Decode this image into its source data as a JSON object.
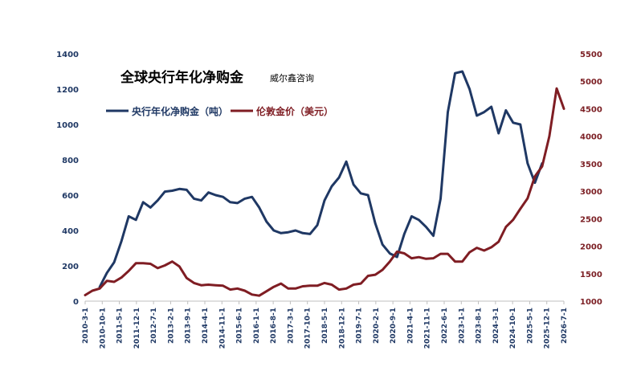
{
  "chart_data": {
    "type": "line",
    "title": "全球央行年化净购金",
    "subtitle": "威尔鑫咨询",
    "xlabel": "",
    "ylabel": "",
    "y_left_lim": [
      0,
      1400
    ],
    "y_left_ticks": [
      "0",
      "200",
      "400",
      "600",
      "800",
      "1000",
      "1200",
      "1400"
    ],
    "y_right_lim": [
      1000,
      5500
    ],
    "y_right_ticks": [
      "1000",
      "1500",
      "2000",
      "2500",
      "3000",
      "3500",
      "4000",
      "4500",
      "5000",
      "5500"
    ],
    "x_tick_labels": [
      "2010-3-1",
      "2010-10-1",
      "2011-5-1",
      "2011-12-1",
      "2012-7-1",
      "2013-2-1",
      "2013-9-1",
      "2014-4-1",
      "2014-11-1",
      "2015-6-1",
      "2016-1-1",
      "2016-8-1",
      "2017-3-1",
      "2017-10-1",
      "2018-5-1",
      "2018-12-1",
      "2019-7-1",
      "2020-2-1",
      "2020-9-1",
      "2021-4-1",
      "2021-11-1",
      "2022-6-1",
      "2023-1-1",
      "2023-8-1",
      "2024-3-1",
      "2024-10-1",
      "2025-5-1",
      "2025-12-1",
      "2026-7-1"
    ],
    "legend_position": "top-left",
    "grid": false,
    "series": [
      {
        "name": "央行年化净购金（吨）",
        "axis": "left",
        "color": "#1f3864",
        "start_index": 2,
        "values": [
          80,
          160,
          220,
          340,
          480,
          460,
          560,
          530,
          570,
          620,
          625,
          635,
          630,
          580,
          570,
          615,
          600,
          590,
          560,
          555,
          580,
          590,
          530,
          450,
          400,
          385,
          390,
          400,
          385,
          380,
          430,
          570,
          650,
          700,
          790,
          660,
          610,
          600,
          440,
          320,
          270,
          250,
          380,
          480,
          460,
          420,
          370,
          580,
          1070,
          1290,
          1300,
          1200,
          1050,
          1070,
          1100,
          950,
          1080,
          1010,
          1000,
          780,
          670,
          780
        ]
      },
      {
        "name": "伦敦金价（美元）",
        "axis": "right",
        "color": "#7f1d23",
        "start_index": 0,
        "values": [
          1110,
          1190,
          1230,
          1370,
          1350,
          1430,
          1550,
          1690,
          1690,
          1680,
          1600,
          1650,
          1720,
          1630,
          1420,
          1330,
          1290,
          1300,
          1290,
          1280,
          1210,
          1230,
          1190,
          1120,
          1100,
          1180,
          1260,
          1320,
          1230,
          1230,
          1270,
          1280,
          1280,
          1330,
          1300,
          1210,
          1230,
          1300,
          1320,
          1460,
          1480,
          1570,
          1720,
          1900,
          1870,
          1780,
          1800,
          1770,
          1780,
          1860,
          1860,
          1720,
          1720,
          1890,
          1970,
          1920,
          1980,
          2080,
          2350,
          2480,
          2680,
          2870,
          3270,
          3450,
          4000,
          4870,
          4500
        ]
      }
    ]
  }
}
